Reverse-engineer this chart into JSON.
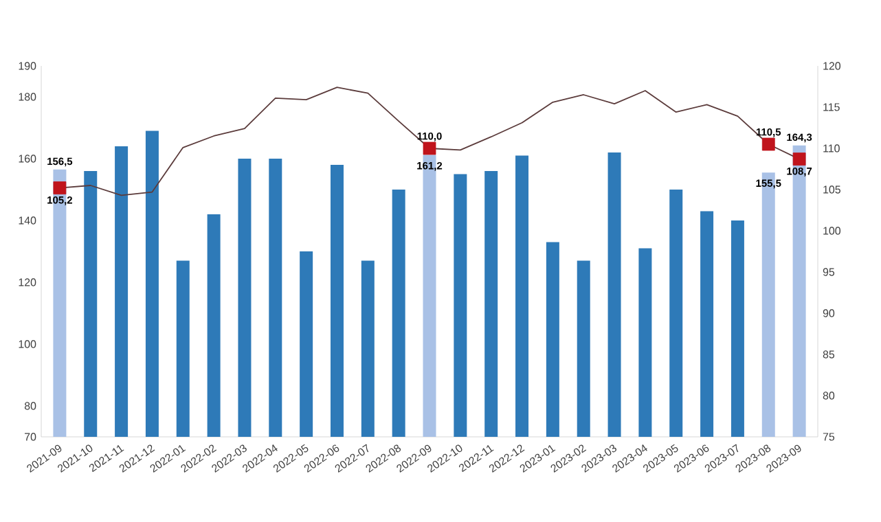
{
  "chart_data": {
    "type": "bar",
    "categories": [
      "2021-09",
      "2021-10",
      "2021-11",
      "2021-12",
      "2022-01",
      "2022-02",
      "2022-03",
      "2022-04",
      "2022-05",
      "2022-06",
      "2022-07",
      "2022-08",
      "2022-09",
      "2022-10",
      "2022-11",
      "2022-12",
      "2023-01",
      "2023-02",
      "2023-03",
      "2023-04",
      "2023-05",
      "2023-06",
      "2023-07",
      "2023-08",
      "2023-09"
    ],
    "series": [
      {
        "colors": [
          "#a9c1e6",
          "#2e7ab8",
          "#2e7ab8",
          "#2e7ab8",
          "#2e7ab8",
          "#2e7ab8",
          "#2e7ab8",
          "#2e7ab8",
          "#2e7ab8",
          "#2e7ab8",
          "#2e7ab8",
          "#2e7ab8",
          "#a9c1e6",
          "#2e7ab8",
          "#2e7ab8",
          "#2e7ab8",
          "#2e7ab8",
          "#2e7ab8",
          "#2e7ab8",
          "#2e7ab8",
          "#2e7ab8",
          "#2e7ab8",
          "#2e7ab8",
          "#a9c1e6",
          "#a9c1e6"
        ],
        "values": [
          156.5,
          156,
          164,
          169,
          127,
          142,
          160,
          160,
          130,
          158,
          127,
          150,
          161.2,
          155,
          156,
          161,
          133,
          127,
          162,
          131,
          150,
          143,
          140,
          155.5,
          164.3
        ],
        "value_labels": [
          "156,5",
          null,
          null,
          null,
          null,
          null,
          null,
          null,
          null,
          null,
          null,
          null,
          "161,2",
          null,
          null,
          null,
          null,
          null,
          null,
          null,
          null,
          null,
          null,
          "155,5",
          "164,3"
        ]
      },
      {
        "type": "line",
        "axis": "y2",
        "color": "#5b3b3b",
        "marker": "none",
        "values": [
          105.2,
          105.5,
          104.3,
          104.7,
          110.1,
          111.5,
          112.4,
          116.1,
          115.9,
          117.4,
          116.7,
          113.3,
          110.0,
          109.8,
          111.4,
          113.1,
          115.6,
          116.5,
          115.4,
          117.0,
          114.4,
          115.3,
          113.9,
          110.5,
          108.7
        ],
        "value_labels": [
          "105,2",
          null,
          null,
          null,
          null,
          null,
          null,
          null,
          null,
          null,
          null,
          null,
          "110,0",
          null,
          null,
          null,
          null,
          null,
          null,
          null,
          null,
          null,
          null,
          "110,5",
          "108,7"
        ]
      },
      {
        "type": "scatter",
        "axis": "y2",
        "color": "#c0141c",
        "marker": "square",
        "values": [
          105.2,
          null,
          null,
          null,
          null,
          null,
          null,
          null,
          null,
          null,
          null,
          null,
          110.0,
          null,
          null,
          null,
          null,
          null,
          null,
          null,
          null,
          null,
          null,
          110.5,
          108.7
        ]
      }
    ],
    "ylim": [
      70,
      190
    ],
    "yticks": [
      70,
      80,
      100,
      120,
      140,
      160,
      180,
      190
    ],
    "y2lim": [
      75,
      120
    ],
    "y2ticks": [
      75,
      80,
      85,
      90,
      95,
      100,
      105,
      110,
      115,
      120
    ]
  }
}
